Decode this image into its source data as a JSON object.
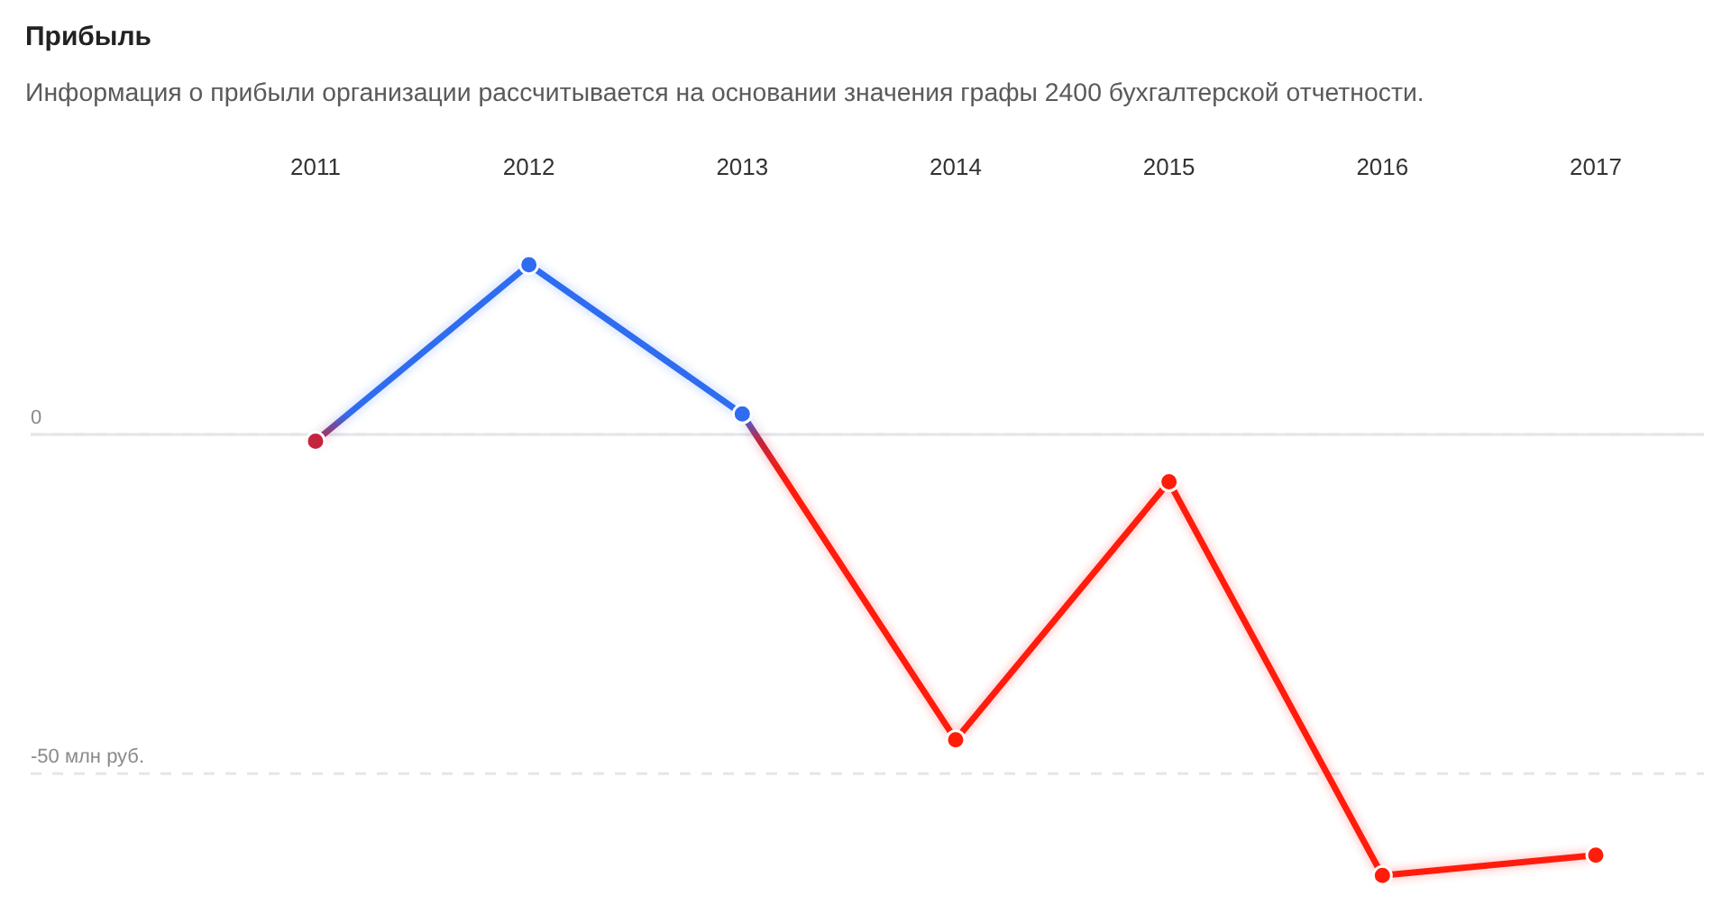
{
  "chart_data": {
    "type": "line",
    "title": "Прибыль",
    "subtitle": "Информация о прибыли организации рассчитывается на основании значения графы 2400 бухгалтерской отчетности.",
    "categories": [
      "2011",
      "2012",
      "2013",
      "2014",
      "2015",
      "2016",
      "2017"
    ],
    "values": [
      -1,
      25,
      3,
      -45,
      -7,
      -65,
      -62
    ],
    "colors": [
      "#c4243c",
      "#2f6cf0",
      "#2f6cf0",
      "#ff1c0a",
      "#ff1c0a",
      "#ff1c0a",
      "#ff1c0a"
    ],
    "ylim": [
      -72,
      64
    ],
    "yticks": [
      {
        "value": -50,
        "label": "-50 млн руб."
      },
      0
    ],
    "grid": "y",
    "marker": "circle",
    "line_style": "solid"
  }
}
